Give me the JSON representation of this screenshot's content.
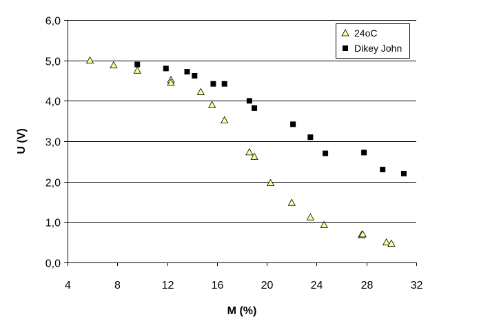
{
  "chart_data": {
    "type": "scatter",
    "xlabel": "M (%)",
    "ylabel": "U (V)",
    "xlim": [
      4,
      32
    ],
    "ylim": [
      0,
      6
    ],
    "x_ticks": [
      4,
      8,
      12,
      16,
      20,
      24,
      28,
      32
    ],
    "y_ticks": [
      0,
      1,
      2,
      3,
      4,
      5,
      6
    ],
    "x_tick_labels": [
      "4",
      "8",
      "12",
      "16",
      "20",
      "24",
      "28",
      "32"
    ],
    "y_tick_labels": [
      "0,0",
      "1,0",
      "2,0",
      "3,0",
      "4,0",
      "5,0",
      "6,0"
    ],
    "grid": "horizontal major gridlines",
    "legend_position": "top-right",
    "series": [
      {
        "name": "24oC",
        "marker": "triangle",
        "color": "#ffff99",
        "x": [
          5.8,
          7.7,
          9.6,
          12.3,
          12.3,
          14.7,
          15.6,
          16.6,
          18.6,
          19.0,
          20.3,
          22.0,
          23.5,
          24.6,
          27.6,
          27.7,
          29.6,
          30.0
        ],
        "y": [
          5.0,
          4.88,
          4.75,
          4.52,
          4.45,
          4.22,
          3.9,
          3.52,
          2.73,
          2.62,
          1.97,
          1.48,
          1.12,
          0.93,
          0.68,
          0.7,
          0.5,
          0.47
        ]
      },
      {
        "name": "Dikey John",
        "marker": "square",
        "color": "#000000",
        "x": [
          9.6,
          11.9,
          13.6,
          14.2,
          15.7,
          16.6,
          18.6,
          19.0,
          22.1,
          23.5,
          24.7,
          27.8,
          29.3,
          31.0
        ],
        "y": [
          4.9,
          4.8,
          4.72,
          4.62,
          4.42,
          4.42,
          4.0,
          3.82,
          3.42,
          3.1,
          2.7,
          2.72,
          2.3,
          2.2
        ]
      }
    ]
  }
}
